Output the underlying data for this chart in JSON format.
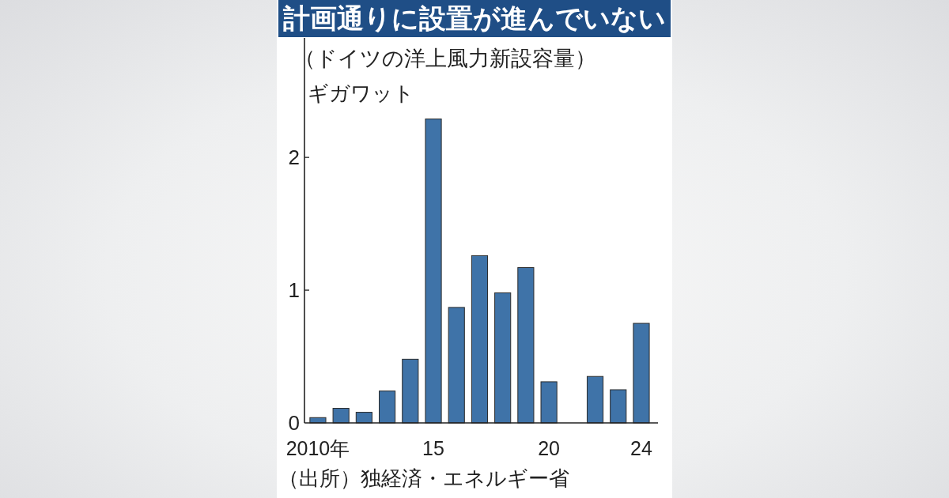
{
  "chart_data": {
    "type": "bar",
    "title": "計画通りに設置が進んでいない",
    "subtitle": "（ドイツの洋上風力新設容量）",
    "ylabel": "ギガワット",
    "categories": [
      "2010年",
      null,
      null,
      null,
      null,
      "15",
      null,
      null,
      null,
      null,
      "20",
      null,
      null,
      null,
      "24"
    ],
    "values": [
      0.04,
      0.11,
      0.08,
      0.24,
      0.48,
      2.29,
      0.87,
      1.26,
      0.98,
      1.17,
      0.31,
      null,
      0.35,
      0.25,
      0.75
    ],
    "color": "#3f73a8",
    "ylim": [
      0,
      2.9
    ],
    "yticks": [
      0,
      1,
      2
    ],
    "annotations": [
      "（出所）独経済・エネルギー省"
    ]
  }
}
